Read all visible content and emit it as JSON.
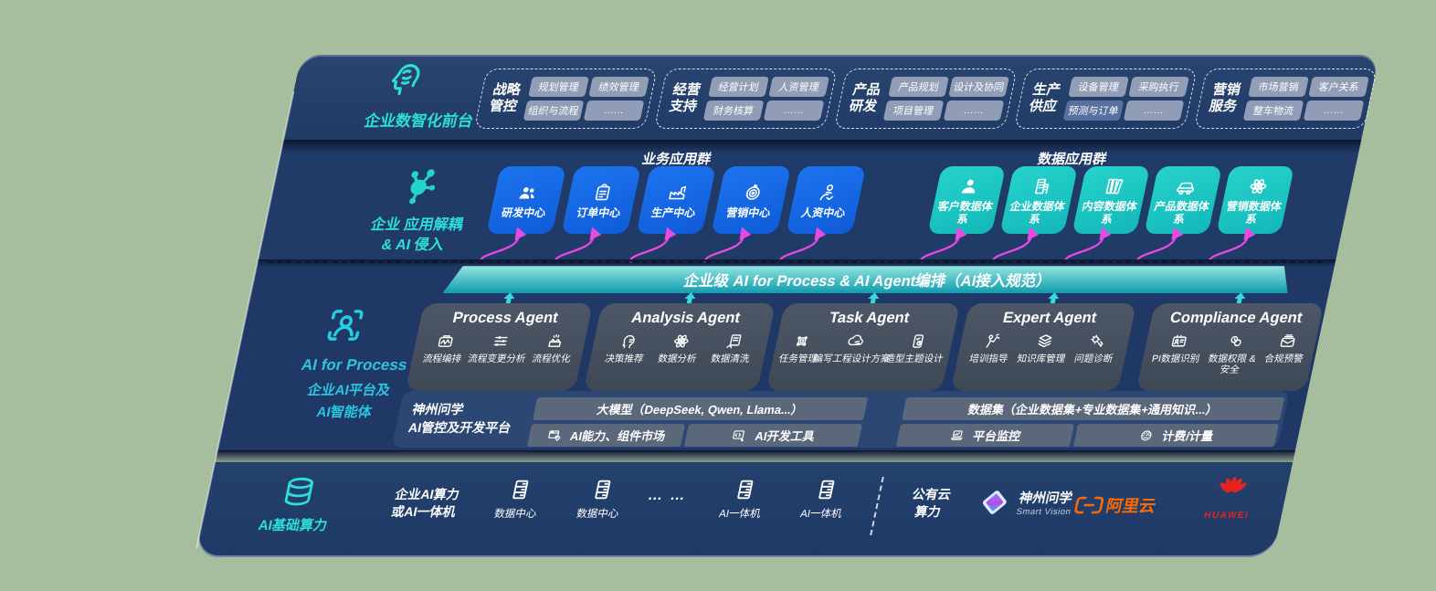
{
  "colors": {
    "background": "#a6bd9e",
    "band_navy": "#203a66",
    "tile_blue": "#1467e6",
    "tile_teal": "#1ecac6",
    "banner_teal_from": "#93e4e0",
    "banner_teal_to": "#0f9cae",
    "arrow_magenta": "#e94ae0",
    "arrow_cyan": "#37d8e2",
    "chip_gray": "#a0abc0",
    "chip_highlight": "#5e74a3",
    "agent_box": "#49525f",
    "accent_cyan": "#2be0da",
    "aliyun_orange": "#ff6a00",
    "huawei_red": "#e6231f"
  },
  "front": {
    "icon": "brain-icon",
    "label": "企业数智化前台",
    "groups": [
      {
        "name_l1": "战略",
        "name_l2": "管控",
        "chips": [
          "规划管理",
          "绩效管理",
          "组织与流程",
          "……"
        ]
      },
      {
        "name_l1": "经营",
        "name_l2": "支持",
        "chips": [
          "经营计划",
          "人资管理",
          "财务核算",
          "……"
        ]
      },
      {
        "name_l1": "产品",
        "name_l2": "研发",
        "chips": [
          "产品规划",
          "设计及协同",
          "项目管理",
          "……"
        ]
      },
      {
        "name_l1": "生产",
        "name_l2": "供应",
        "chips": [
          "设备管理",
          "采购执行",
          "预测与订单",
          "……"
        ]
      },
      {
        "name_l1": "营销",
        "name_l2": "服务",
        "chips": [
          "市场营销",
          "客户关系",
          "整车物流",
          "……"
        ]
      }
    ]
  },
  "apps": {
    "icon": "molecule-icon",
    "label_l1": "企业 应用解耦",
    "label_l2": "& AI 侵入",
    "business_title": "业务应用群",
    "business_tiles": [
      {
        "label": "研发中心",
        "icon": "users-icon"
      },
      {
        "label": "订单中心",
        "icon": "clipboard-icon"
      },
      {
        "label": "生产中心",
        "icon": "factory-icon"
      },
      {
        "label": "营销中心",
        "icon": "target-icon"
      },
      {
        "label": "人资中心",
        "icon": "person-motion-icon"
      }
    ],
    "data_title": "数据应用群",
    "data_tiles": [
      {
        "label": "客户数据体系",
        "icon": "person-icon"
      },
      {
        "label": "企业数据体系",
        "icon": "building-icon"
      },
      {
        "label": "内容数据体系",
        "icon": "books-icon"
      },
      {
        "label": "产品数据体系",
        "icon": "car-icon"
      },
      {
        "label": "营销数据体系",
        "icon": "atom-icon"
      }
    ]
  },
  "banner": {
    "text": "企业级 AI for Process & AI Agent编排（AI接入规范）"
  },
  "agents": {
    "icon": "person-scan-icon",
    "label_l1": "AI for Process",
    "label_l2": "企业AI平台及",
    "label_l3": "AI智能体",
    "boxes": [
      {
        "title": "Process Agent",
        "items": [
          {
            "label": "流程编排",
            "icon": "workflow-icon"
          },
          {
            "label": "流程变更分析",
            "icon": "sliders-icon"
          },
          {
            "label": "流程优化",
            "icon": "optimize-icon"
          }
        ]
      },
      {
        "title": "Analysis Agent",
        "items": [
          {
            "label": "决策推荐",
            "icon": "head-idea-icon"
          },
          {
            "label": "数据分析",
            "icon": "atom-icon"
          },
          {
            "label": "数据清洗",
            "icon": "data-clean-icon"
          }
        ]
      },
      {
        "title": "Task Agent",
        "items": [
          {
            "label": "任务管理",
            "icon": "task-grid-icon"
          },
          {
            "label": "编写工程设计方案",
            "icon": "cloud-edit-icon"
          },
          {
            "label": "造型主题设计",
            "icon": "design-card-icon"
          }
        ]
      },
      {
        "title": "Expert Agent",
        "items": [
          {
            "label": "培训指导",
            "icon": "training-icon"
          },
          {
            "label": "知识库管理",
            "icon": "layers-icon"
          },
          {
            "label": "问题诊断",
            "icon": "diagnose-icon"
          }
        ]
      },
      {
        "title": "Compliance Agent",
        "items": [
          {
            "label": "PI数据识别",
            "icon": "id-card-icon"
          },
          {
            "label": "数据权限 & 安全",
            "icon": "permission-icon"
          },
          {
            "label": "合规预警",
            "icon": "alert-mail-icon"
          }
        ]
      }
    ]
  },
  "platform": {
    "label_l1": "神州问学",
    "label_l2": "AI管控及开发平台",
    "model_bar": "大模型（DeepSeek, Qwen, Llama...）",
    "dataset_bar": "数据集（企业数据集+专业数据集+通用知识...）",
    "tool_market": {
      "label": "AI能力、组件市场",
      "icon": "ai-market-icon"
    },
    "tool_dev": {
      "label": "AI开发工具",
      "icon": "dev-tools-icon"
    },
    "tool_monitor": {
      "label": "平台监控",
      "icon": "monitor-icon"
    },
    "tool_meter": {
      "label": "计费/计量",
      "icon": "meter-icon"
    }
  },
  "infra": {
    "icon": "database-icon",
    "label": "AI基础算力",
    "compute_l1": "企业AI算力",
    "compute_l2": "或AI一体机",
    "nodes": [
      {
        "label": "数据中心",
        "icon": "server-icon"
      },
      {
        "label": "数据中心",
        "icon": "server-icon"
      },
      {
        "label": "AI一体机",
        "icon": "server-icon"
      },
      {
        "label": "AI一体机",
        "icon": "server-icon"
      }
    ],
    "dots": "… …",
    "cloud_l1": "公有云",
    "cloud_l2": "算力",
    "vendors": {
      "sv_name": "神州问学",
      "sv_sub": "Smart Vision",
      "sv_icon": "smartvision-logo",
      "aliyun_name": "阿里云",
      "aliyun_icon": "aliyun-logo",
      "huawei_name": "HUAWEI",
      "huawei_icon": "huawei-logo"
    }
  }
}
